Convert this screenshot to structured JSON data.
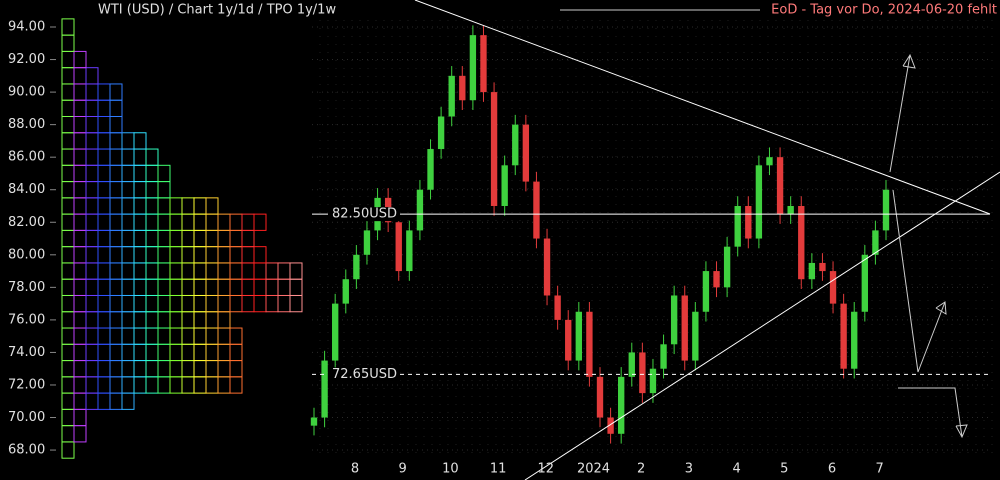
{
  "chart_data": {
    "type": "candlestick",
    "title": "WTI (USD) /  Chart 1y/1d / TPO 1y/1w",
    "annotation": "EoD - Tag vor Do, 2024-06-20 fehlt",
    "categories": [
      "8",
      "9",
      "10",
      "11",
      "12",
      "2024",
      "2",
      "3",
      "4",
      "5",
      "6",
      "7"
    ],
    "open": [
      69.5,
      70.0,
      73.5,
      77.0,
      78.5,
      80.0,
      81.5,
      83.5,
      82.0,
      79.0,
      81.5,
      84.0,
      86.5,
      88.5,
      91.0,
      89.5,
      93.5,
      90.0,
      83.0,
      85.5,
      88.0,
      84.5,
      81.0,
      77.5,
      76.0,
      73.5,
      76.5,
      72.5,
      70.0,
      69.0,
      72.5,
      74.0,
      71.5,
      73.0,
      74.5,
      77.5,
      73.5,
      76.5,
      79.0,
      78.0,
      80.5,
      83.0,
      81.0,
      85.5,
      86.0,
      82.5,
      83.0,
      78.5,
      79.5,
      79.0,
      77.0,
      73.0,
      76.5,
      80.0,
      81.5
    ],
    "high": [
      70.6,
      74.1,
      77.6,
      79.1,
      80.6,
      82.1,
      84.1,
      84.1,
      82.6,
      82.1,
      84.6,
      87.1,
      89.1,
      91.6,
      91.6,
      94.1,
      94.1,
      90.6,
      86.1,
      88.6,
      88.6,
      85.1,
      81.6,
      78.1,
      76.6,
      77.1,
      77.1,
      73.1,
      70.6,
      73.1,
      74.6,
      74.6,
      73.6,
      75.1,
      78.1,
      78.1,
      77.1,
      79.6,
      79.6,
      81.1,
      83.6,
      83.6,
      86.1,
      86.6,
      86.6,
      83.6,
      83.6,
      80.1,
      80.1,
      79.6,
      77.6,
      77.1,
      80.6,
      82.1,
      84.6
    ],
    "low": [
      68.9,
      69.4,
      72.9,
      76.4,
      77.9,
      79.4,
      80.9,
      81.4,
      78.4,
      78.4,
      80.9,
      83.4,
      85.9,
      87.9,
      88.9,
      88.9,
      89.4,
      82.4,
      82.4,
      84.9,
      83.9,
      80.4,
      76.9,
      75.4,
      72.9,
      72.9,
      71.9,
      69.4,
      68.4,
      68.4,
      71.9,
      70.9,
      70.9,
      72.4,
      73.9,
      72.9,
      72.9,
      75.9,
      77.4,
      77.4,
      79.9,
      80.4,
      80.4,
      84.9,
      81.9,
      81.9,
      77.9,
      77.9,
      78.4,
      76.4,
      72.4,
      72.4,
      75.9,
      79.4,
      80.9
    ],
    "close": [
      70.0,
      73.5,
      77.0,
      78.5,
      80.0,
      81.5,
      83.5,
      82.0,
      79.0,
      81.5,
      84.0,
      86.5,
      88.5,
      91.0,
      89.5,
      93.5,
      90.0,
      83.0,
      85.5,
      88.0,
      84.5,
      81.0,
      77.5,
      76.0,
      73.5,
      76.5,
      72.5,
      70.0,
      69.0,
      72.5,
      74.0,
      71.5,
      73.0,
      74.5,
      77.5,
      73.5,
      76.5,
      79.0,
      78.0,
      80.5,
      83.0,
      81.0,
      85.5,
      86.0,
      82.5,
      83.0,
      78.5,
      79.5,
      79.0,
      77.0,
      73.0,
      76.5,
      80.0,
      81.5,
      84.0
    ],
    "up_color": "#3fd13f",
    "down_color": "#e33b3b",
    "ylim": [
      66.16,
      95.66
    ],
    "yticks": [
      {
        "value": 68,
        "label": "68.00"
      },
      {
        "value": 70,
        "label": "70.00"
      },
      {
        "value": 72,
        "label": "72.00"
      },
      {
        "value": 74,
        "label": "74.00"
      },
      {
        "value": 76,
        "label": "76.00"
      },
      {
        "value": 78,
        "label": "78.00"
      },
      {
        "value": 80,
        "label": "80.00"
      },
      {
        "value": 82,
        "label": "82.00"
      },
      {
        "value": 84,
        "label": "84.00"
      },
      {
        "value": 86,
        "label": "86.00"
      },
      {
        "value": 88,
        "label": "88.00"
      },
      {
        "value": 90,
        "label": "90.00"
      },
      {
        "value": 92,
        "label": "92.00"
      },
      {
        "value": 94,
        "label": "94.00"
      }
    ],
    "grid": true,
    "levels": [
      {
        "value": 82.5,
        "label": "82.50USD",
        "style": "solid"
      },
      {
        "value": 72.65,
        "label": "72.65USD",
        "style": "dashed"
      }
    ],
    "tpo": {
      "prices": [
        68,
        69,
        70,
        71,
        72,
        73,
        74,
        75,
        76,
        77,
        78,
        79,
        80,
        81,
        82,
        83,
        84,
        85,
        86,
        87,
        88,
        89,
        90,
        91,
        92,
        93,
        94
      ],
      "counts": [
        1,
        2,
        2,
        6,
        15,
        15,
        15,
        15,
        14,
        20,
        20,
        20,
        17,
        16,
        17,
        13,
        9,
        9,
        8,
        7,
        5,
        5,
        5,
        3,
        2,
        1,
        1
      ],
      "colors": [
        "#7cff4a",
        "#c040ff",
        "#6a3cff",
        "#3050ff",
        "#2f7dff",
        "#2fb0ff",
        "#30e0ff",
        "#30ffc0",
        "#40ff70",
        "#80ff30",
        "#c8ff30",
        "#ffff30",
        "#ffd030",
        "#ffa030",
        "#ff7030",
        "#ff3030",
        "#ff2020",
        "#ff5050",
        "#ff7070",
        "#ff9090"
      ]
    }
  }
}
